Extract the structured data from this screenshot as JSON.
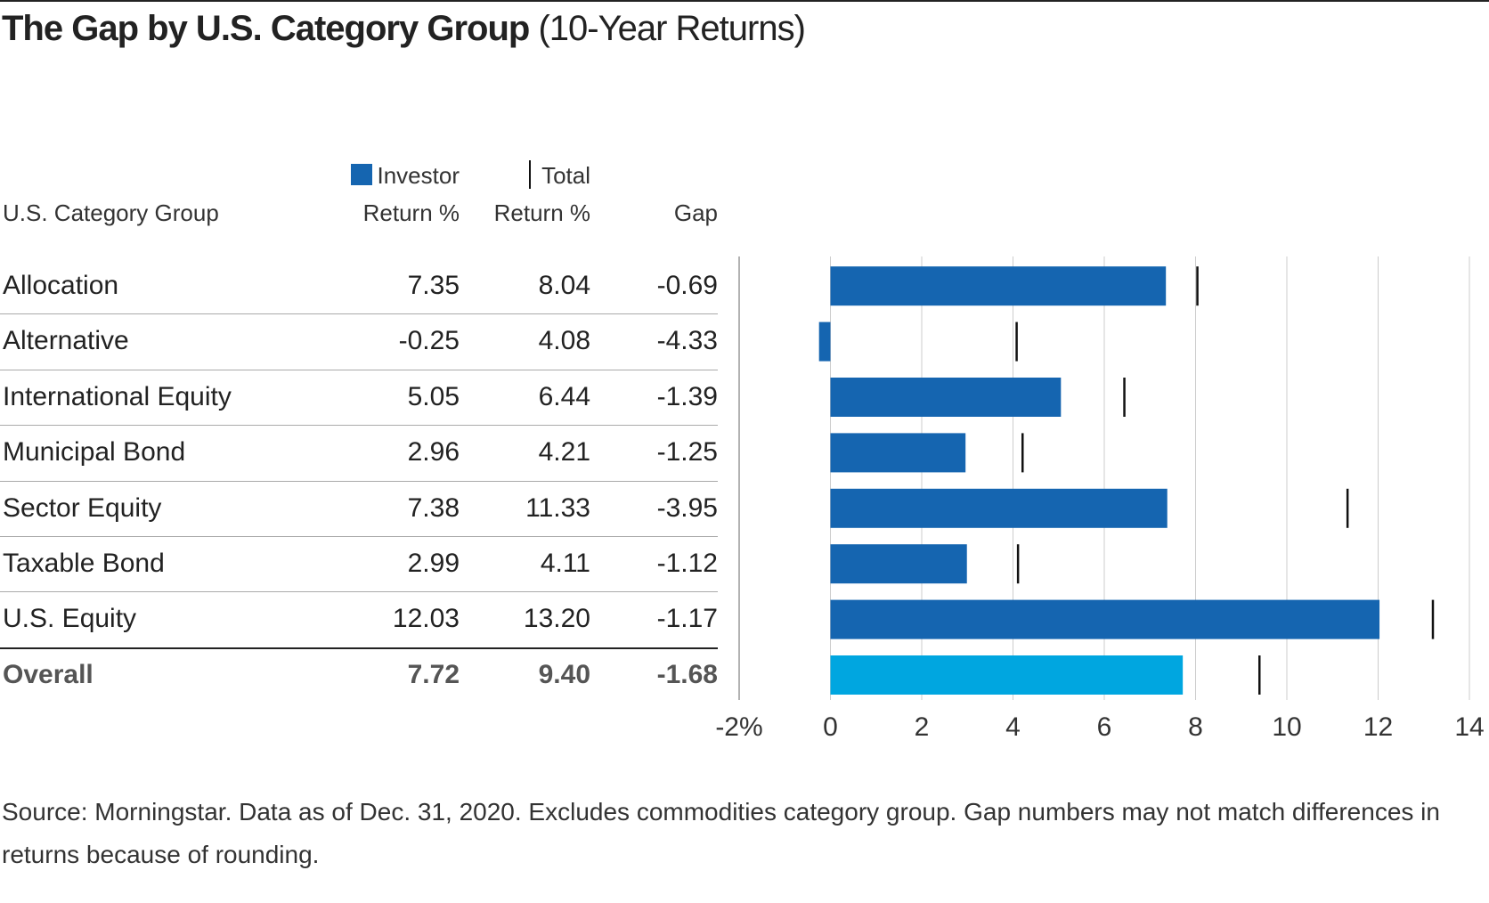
{
  "chart_data": {
    "type": "bar",
    "title": "The Gap by U.S. Category Group",
    "subtitle": "(10-Year Returns)",
    "category_label": "U.S. Category Group",
    "categories": [
      "Allocation",
      "Alternative",
      "International Equity",
      "Municipal Bond",
      "Sector Equity",
      "Taxable Bond",
      "U.S. Equity",
      "Overall"
    ],
    "series": [
      {
        "name": "Investor Return %",
        "color": "#1565b0",
        "colors": [
          "#1565b0",
          "#1565b0",
          "#1565b0",
          "#1565b0",
          "#1565b0",
          "#1565b0",
          "#1565b0",
          "#00a6e0"
        ],
        "values": [
          7.35,
          -0.25,
          5.05,
          2.96,
          7.38,
          2.99,
          12.03,
          7.72
        ]
      },
      {
        "name": "Total Return %",
        "color": "#111111",
        "values": [
          8.04,
          4.08,
          6.44,
          4.21,
          11.33,
          4.11,
          13.2,
          9.4
        ],
        "value_labels": [
          "8.04",
          "4.08",
          "6.44",
          "4.21",
          "11.33",
          "4.11",
          "13.20",
          "9.40"
        ]
      }
    ],
    "gap": {
      "name": "Gap",
      "values": [
        -0.69,
        -4.33,
        -1.39,
        -1.25,
        -3.95,
        -1.12,
        -1.17,
        -1.68
      ]
    },
    "xlim": [
      -2,
      14
    ],
    "xticks": [
      {
        "value": -2,
        "label": "-2%"
      },
      0,
      2,
      4,
      6,
      8,
      10,
      12,
      14
    ],
    "grid": true,
    "note": "Source: Morningstar. Data as of Dec. 31, 2020. Excludes commodities category group. Gap numbers may not match differences in returns because of rounding."
  }
}
